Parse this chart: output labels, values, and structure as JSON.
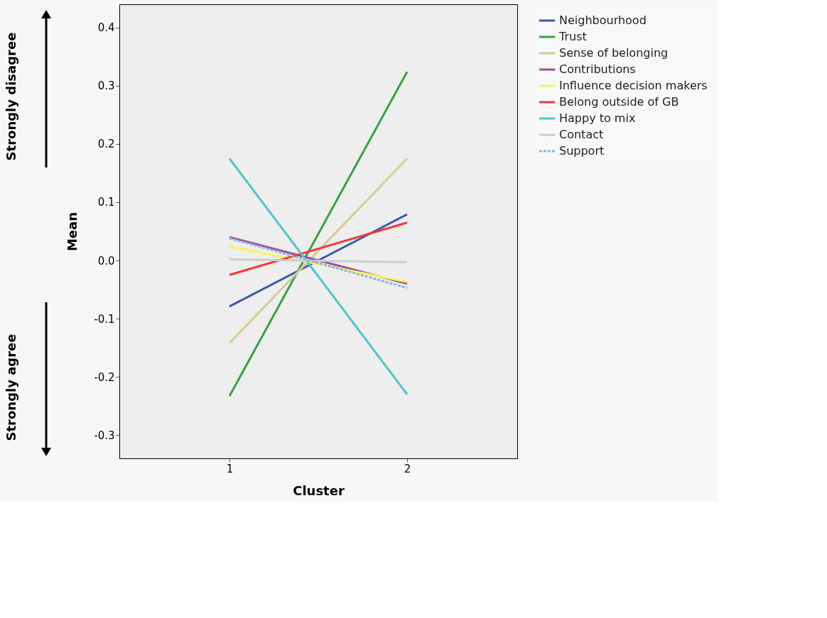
{
  "chart_data": {
    "type": "line",
    "xlabel": "Cluster",
    "ylabel": "Mean",
    "categories": [
      "1",
      "2"
    ],
    "series": [
      {
        "name": "Neighbourhood",
        "color": "#3f5aa8",
        "values": [
          -0.079,
          0.079
        ]
      },
      {
        "name": "Trust",
        "color": "#3aa045",
        "values": [
          -0.233,
          0.324
        ]
      },
      {
        "name": "Sense of belonging",
        "color": "#d4cc94",
        "values": [
          -0.142,
          0.175
        ]
      },
      {
        "name": "Contributions",
        "color": "#9b4f9b",
        "values": [
          0.04,
          -0.04
        ]
      },
      {
        "name": "Influence decision makers",
        "color": "#f5f560",
        "values": [
          0.024,
          -0.037
        ]
      },
      {
        "name": "Belong outside of GB",
        "color": "#ef3a3a",
        "values": [
          -0.025,
          0.065
        ]
      },
      {
        "name": "Happy to mix",
        "color": "#52c4c8",
        "values": [
          0.175,
          -0.23
        ]
      },
      {
        "name": "Contact",
        "color": "#cccccc",
        "values": [
          0.002,
          -0.003
        ]
      },
      {
        "name": "Support",
        "color": "#8ab4dc",
        "values": [
          0.038,
          -0.047
        ],
        "line_style": "dashed"
      }
    ],
    "ylim": [
      -0.34,
      0.44
    ],
    "yticks": [
      -0.3,
      -0.2,
      -0.1,
      {
        "value": 0,
        "label": "0.0"
      },
      0.1,
      0.2,
      0.3,
      0.4
    ],
    "grid": false,
    "legend": "right",
    "marker": "none",
    "line_style": "solid",
    "annotations": [
      "Strongly disagree",
      "Strongly agree"
    ]
  }
}
